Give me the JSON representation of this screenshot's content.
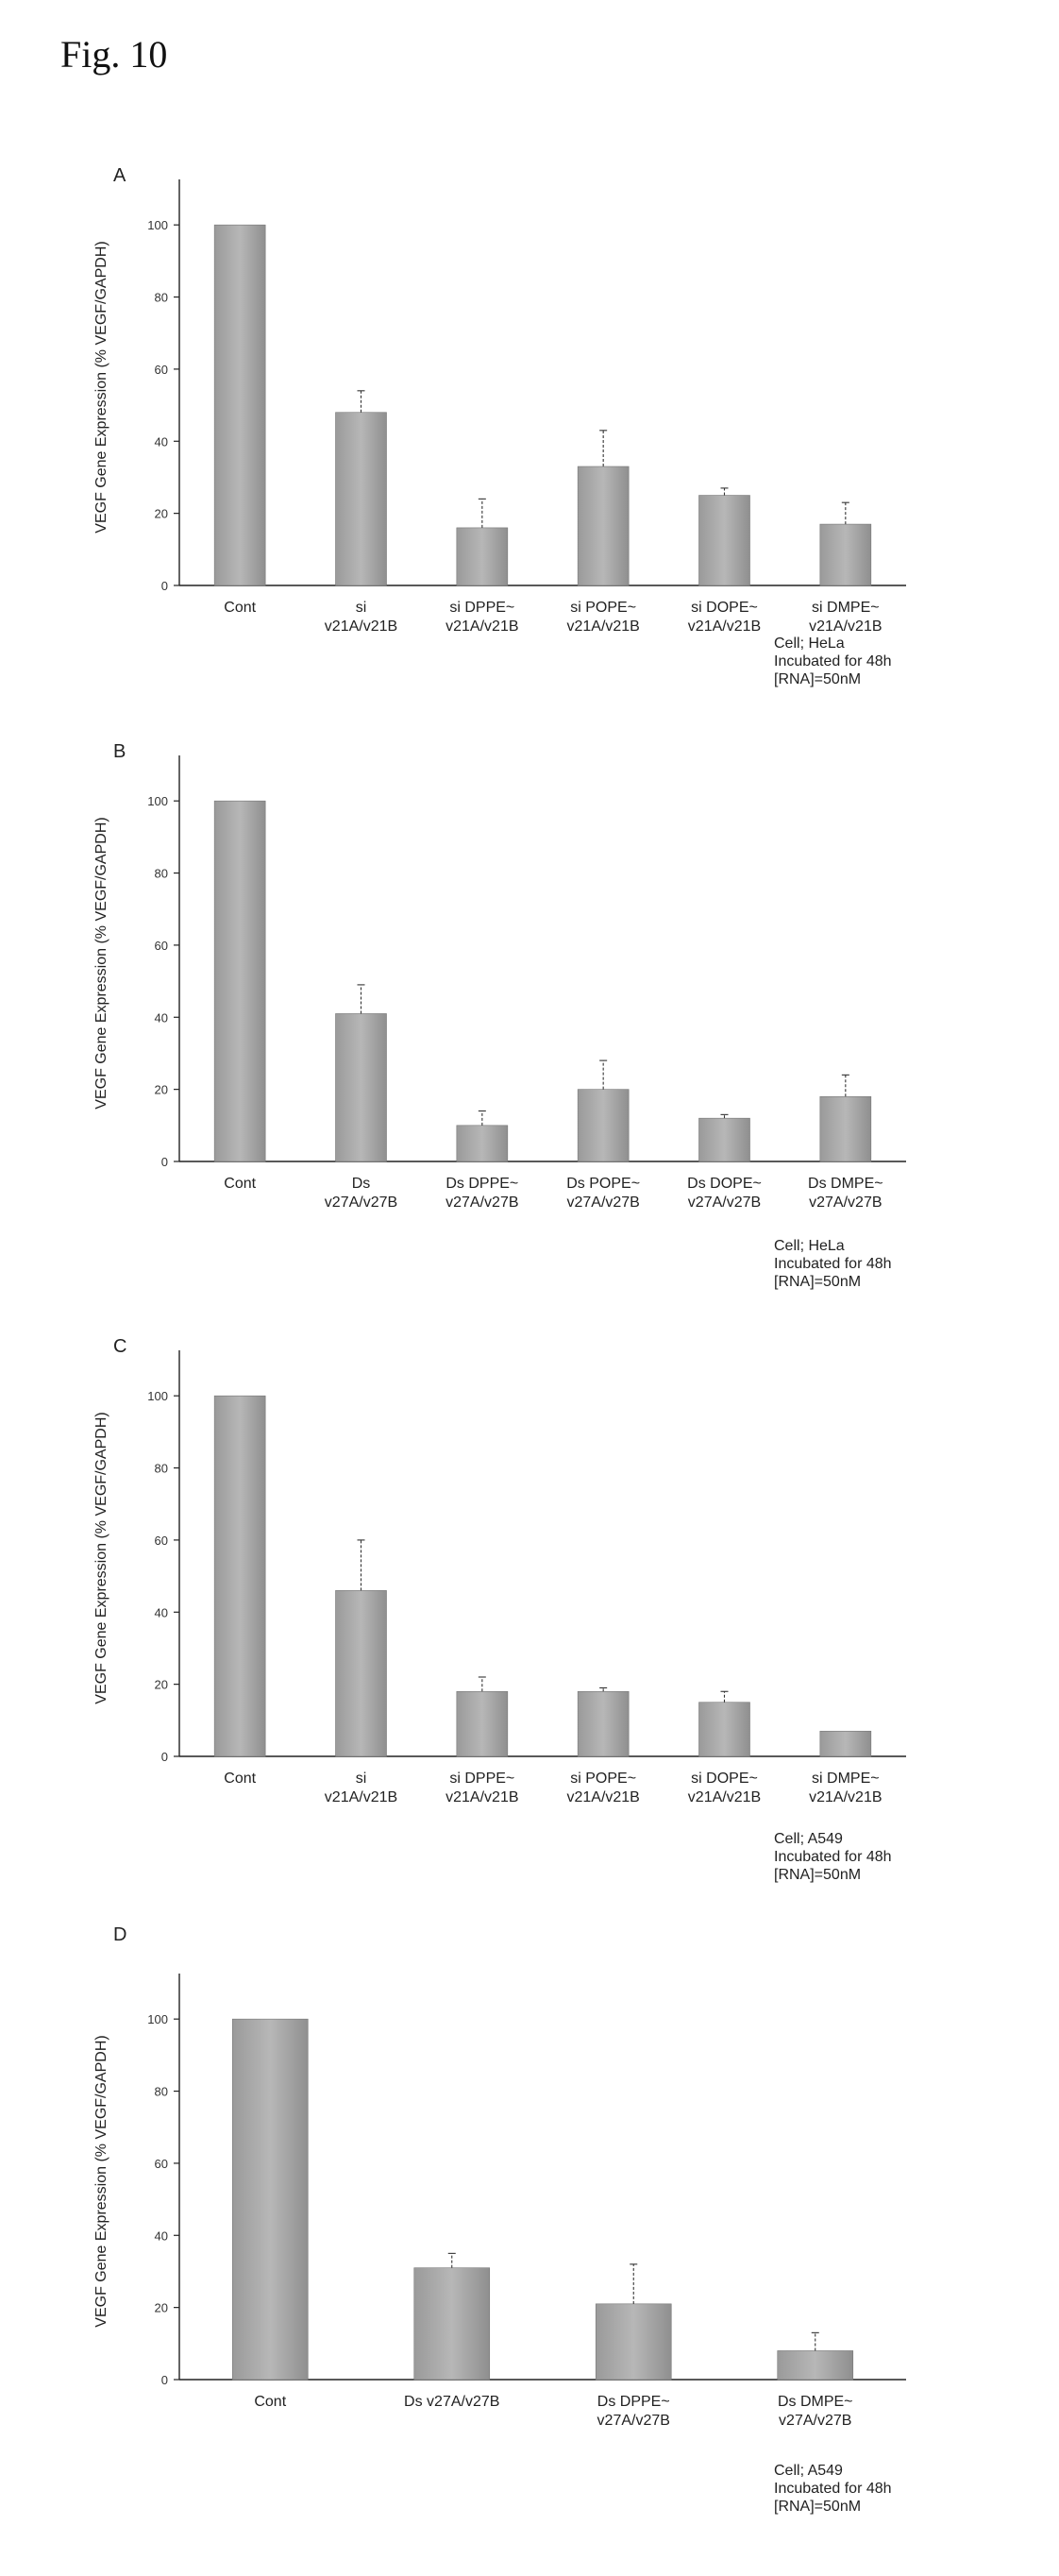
{
  "figure_title": "Fig. 10",
  "colors": {
    "bar": "#b7b7b7",
    "axis": "#222222"
  },
  "panels": [
    {
      "letter": "A",
      "notes": [
        "Cell; HeLa",
        "Incubated for 48h",
        "[RNA]=50nM"
      ]
    },
    {
      "letter": "B",
      "notes": [
        "Cell; HeLa",
        "Incubated for 48h",
        "[RNA]=50nM"
      ]
    },
    {
      "letter": "C",
      "notes": [
        "Cell; A549",
        "Incubated for 48h",
        "[RNA]=50nM"
      ]
    },
    {
      "letter": "D",
      "notes": [
        "Cell; A549",
        "Incubated for 48h",
        "[RNA]=50nM"
      ]
    }
  ],
  "chart_data": [
    {
      "type": "bar",
      "ylabel": "VEGF Gene Expression (% VEGF/GAPDH)",
      "ylim": [
        0,
        110
      ],
      "yticks": [
        0,
        20,
        40,
        60,
        80,
        100
      ],
      "categories": [
        [
          "Cont"
        ],
        [
          "si",
          "v21A/v21B"
        ],
        [
          "si DPPE~",
          "v21A/v21B"
        ],
        [
          "si POPE~",
          "v21A/v21B"
        ],
        [
          "si DOPE~",
          "v21A/v21B"
        ],
        [
          "si DMPE~",
          "v21A/v21B"
        ]
      ],
      "values": [
        100,
        48,
        16,
        33,
        25,
        17
      ],
      "errors": [
        0,
        6,
        8,
        10,
        2,
        6
      ]
    },
    {
      "type": "bar",
      "ylabel": "VEGF Gene Expression (% VEGF/GAPDH)",
      "ylim": [
        0,
        110
      ],
      "yticks": [
        0,
        20,
        40,
        60,
        80,
        100
      ],
      "categories": [
        [
          "Cont"
        ],
        [
          "Ds",
          "v27A/v27B"
        ],
        [
          "Ds DPPE~",
          "v27A/v27B"
        ],
        [
          "Ds POPE~",
          "v27A/v27B"
        ],
        [
          "Ds DOPE~",
          "v27A/v27B"
        ],
        [
          "Ds DMPE~",
          "v27A/v27B"
        ]
      ],
      "values": [
        100,
        41,
        10,
        20,
        12,
        18
      ],
      "errors": [
        0,
        8,
        4,
        8,
        1,
        6
      ]
    },
    {
      "type": "bar",
      "ylabel": "VEGF Gene Expression (% VEGF/GAPDH)",
      "ylim": [
        0,
        110
      ],
      "yticks": [
        0,
        20,
        40,
        60,
        80,
        100
      ],
      "categories": [
        [
          "Cont"
        ],
        [
          "si",
          "v21A/v21B"
        ],
        [
          "si DPPE~",
          "v21A/v21B"
        ],
        [
          "si POPE~",
          "v21A/v21B"
        ],
        [
          "si DOPE~",
          "v21A/v21B"
        ],
        [
          "si DMPE~",
          "v21A/v21B"
        ]
      ],
      "values": [
        100,
        46,
        18,
        18,
        15,
        7
      ],
      "errors": [
        0,
        14,
        4,
        1,
        3,
        0
      ]
    },
    {
      "type": "bar",
      "ylabel": "VEGF Gene Expression (% VEGF/GAPDH)",
      "ylim": [
        0,
        110
      ],
      "yticks": [
        0,
        20,
        40,
        60,
        80,
        100
      ],
      "categories": [
        [
          "Cont"
        ],
        [
          "Ds v27A/v27B"
        ],
        [
          "Ds DPPE~",
          "v27A/v27B"
        ],
        [
          "Ds DMPE~",
          "v27A/v27B"
        ]
      ],
      "values": [
        100,
        31,
        21,
        8
      ],
      "errors": [
        0,
        4,
        11,
        5
      ]
    }
  ]
}
